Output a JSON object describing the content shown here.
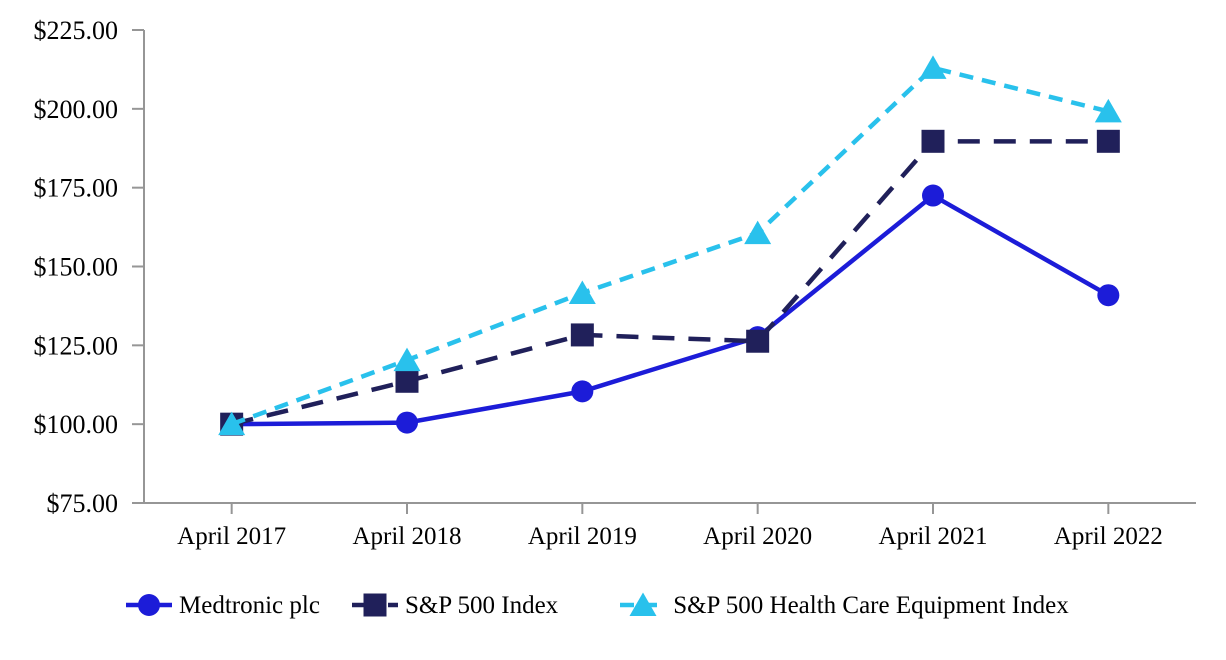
{
  "chart_data": {
    "type": "line",
    "title": "",
    "categories": [
      "April 2017",
      "April 2018",
      "April 2019",
      "April 2020",
      "April 2021",
      "April 2022"
    ],
    "series": [
      {
        "name": "Medtronic plc",
        "marker": "circle",
        "line_style": "solid",
        "color": "#1C1CD8",
        "values": [
          100.0,
          100.5,
          110.4,
          127.6,
          172.5,
          140.9
        ]
      },
      {
        "name": "S&P 500 Index",
        "marker": "square",
        "line_style": "long-dash",
        "color": "#20205A",
        "values": [
          100.0,
          113.6,
          128.3,
          126.3,
          189.7,
          189.7
        ]
      },
      {
        "name": "S&P 500 Health Care Equipment Index",
        "marker": "triangle",
        "line_style": "dash",
        "color": "#29C1EC",
        "values": [
          100.0,
          120.3,
          141.6,
          160.6,
          213.0,
          199.2
        ]
      }
    ],
    "y_axis": {
      "min": 75,
      "max": 225,
      "ticks": [
        {
          "label": "$75.00",
          "value": 75
        },
        {
          "label": "$100.00",
          "value": 100
        },
        {
          "label": "$125.00",
          "value": 125
        },
        {
          "label": "$150.00",
          "value": 150
        },
        {
          "label": "$175.00",
          "value": 175
        },
        {
          "label": "$200.00",
          "value": 200
        },
        {
          "label": "$225.00",
          "value": 225
        }
      ]
    },
    "xlabel": "",
    "ylabel": "",
    "grid": false,
    "legend_position": "bottom",
    "axis_color": "#969696",
    "text_color": "#000000",
    "background_color": "#FFFFFF"
  }
}
